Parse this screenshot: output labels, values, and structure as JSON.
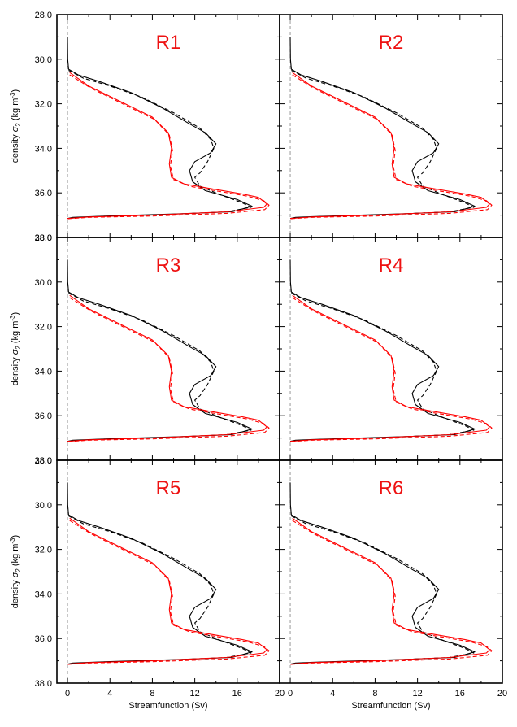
{
  "figure": {
    "panel_labels": [
      "R1",
      "R2",
      "R3",
      "R4",
      "R5",
      "R6"
    ],
    "xlabel": "Streamfunction (Sv)",
    "ylabel_main": "density",
    "ylabel_symbol": "σ",
    "ylabel_subscript": "2",
    "ylabel_units_open": "(kg m",
    "ylabel_units_exp": "-3",
    "ylabel_units_close": ")",
    "x_ticks": [
      "0",
      "4",
      "8",
      "12",
      "16",
      "20"
    ],
    "y_ticks": [
      "28.0",
      "30.0",
      "32.0",
      "34.0",
      "36.0",
      "38.0"
    ],
    "colors": {
      "black": "#000000",
      "red": "#ff0000",
      "label_red": "#ee1111",
      "zero_line": "#999999"
    }
  },
  "chart_data": {
    "type": "line",
    "panels": [
      "R1",
      "R2",
      "R3",
      "R4",
      "R5",
      "R6"
    ],
    "xlabel": "Streamfunction (Sv)",
    "ylabel": "density σ2 (kg m-3)",
    "xlim": [
      -1,
      20
    ],
    "ylim": [
      38,
      28
    ],
    "x_ticks": [
      0,
      4,
      8,
      12,
      16,
      20
    ],
    "y_ticks": [
      28,
      30,
      32,
      34,
      36,
      38
    ],
    "reference_line": {
      "x": 0,
      "style": "dashed",
      "color": "#999999"
    },
    "series": [
      {
        "color": "#000000",
        "style": "solid",
        "points": [
          [
            0,
            29.0
          ],
          [
            0.02,
            30.0
          ],
          [
            0.1,
            30.45
          ],
          [
            1,
            30.7
          ],
          [
            3,
            31.0
          ],
          [
            6,
            31.5
          ],
          [
            9,
            32.2
          ],
          [
            11.5,
            32.9
          ],
          [
            13.0,
            33.3
          ],
          [
            14.0,
            33.8
          ],
          [
            13.5,
            34.2
          ],
          [
            12.0,
            34.6
          ],
          [
            11.5,
            35.0
          ],
          [
            11.8,
            35.5
          ],
          [
            13.0,
            35.9
          ],
          [
            16.0,
            36.3
          ],
          [
            17.4,
            36.6
          ],
          [
            15.5,
            36.85
          ],
          [
            10,
            36.95
          ],
          [
            3,
            37.05
          ],
          [
            0.5,
            37.1
          ],
          [
            0,
            37.15
          ]
        ]
      },
      {
        "color": "#000000",
        "style": "dashed",
        "points": [
          [
            0.1,
            30.5
          ],
          [
            1.5,
            30.85
          ],
          [
            4,
            31.2
          ],
          [
            7,
            31.7
          ],
          [
            10,
            32.4
          ],
          [
            12.5,
            33.1
          ],
          [
            13.5,
            33.6
          ],
          [
            13.8,
            34.0
          ],
          [
            13.2,
            34.6
          ],
          [
            12.5,
            35.1
          ],
          [
            12.0,
            35.3
          ],
          [
            12.5,
            35.7
          ],
          [
            14.5,
            36.1
          ],
          [
            16.5,
            36.45
          ],
          [
            17.3,
            36.65
          ],
          [
            15.0,
            36.85
          ],
          [
            9,
            36.98
          ],
          [
            2,
            37.08
          ],
          [
            0,
            37.15
          ]
        ]
      },
      {
        "color": "#ff0000",
        "style": "solid",
        "points": [
          [
            0.2,
            30.6
          ],
          [
            2,
            31.2
          ],
          [
            5,
            31.9
          ],
          [
            8,
            32.6
          ],
          [
            9.5,
            33.3
          ],
          [
            9.8,
            34.0
          ],
          [
            9.6,
            34.7
          ],
          [
            9.8,
            35.3
          ],
          [
            11,
            35.6
          ],
          [
            14,
            35.85
          ],
          [
            16.5,
            36.05
          ],
          [
            18,
            36.2
          ],
          [
            18.8,
            36.5
          ],
          [
            18.5,
            36.65
          ],
          [
            15,
            36.85
          ],
          [
            8,
            37.0
          ],
          [
            2,
            37.08
          ],
          [
            0,
            37.15
          ]
        ]
      },
      {
        "color": "#ff0000",
        "style": "dashed",
        "points": [
          [
            0.2,
            30.7
          ],
          [
            2.2,
            31.3
          ],
          [
            5.2,
            32.0
          ],
          [
            8.2,
            32.7
          ],
          [
            9.6,
            33.4
          ],
          [
            9.9,
            34.1
          ],
          [
            9.7,
            34.8
          ],
          [
            10.0,
            35.4
          ],
          [
            11.5,
            35.7
          ],
          [
            14.5,
            35.95
          ],
          [
            17,
            36.15
          ],
          [
            18.5,
            36.35
          ],
          [
            19.0,
            36.55
          ],
          [
            18.6,
            36.75
          ],
          [
            15,
            36.92
          ],
          [
            8,
            37.04
          ],
          [
            2,
            37.1
          ],
          [
            0,
            37.16
          ]
        ]
      }
    ]
  }
}
